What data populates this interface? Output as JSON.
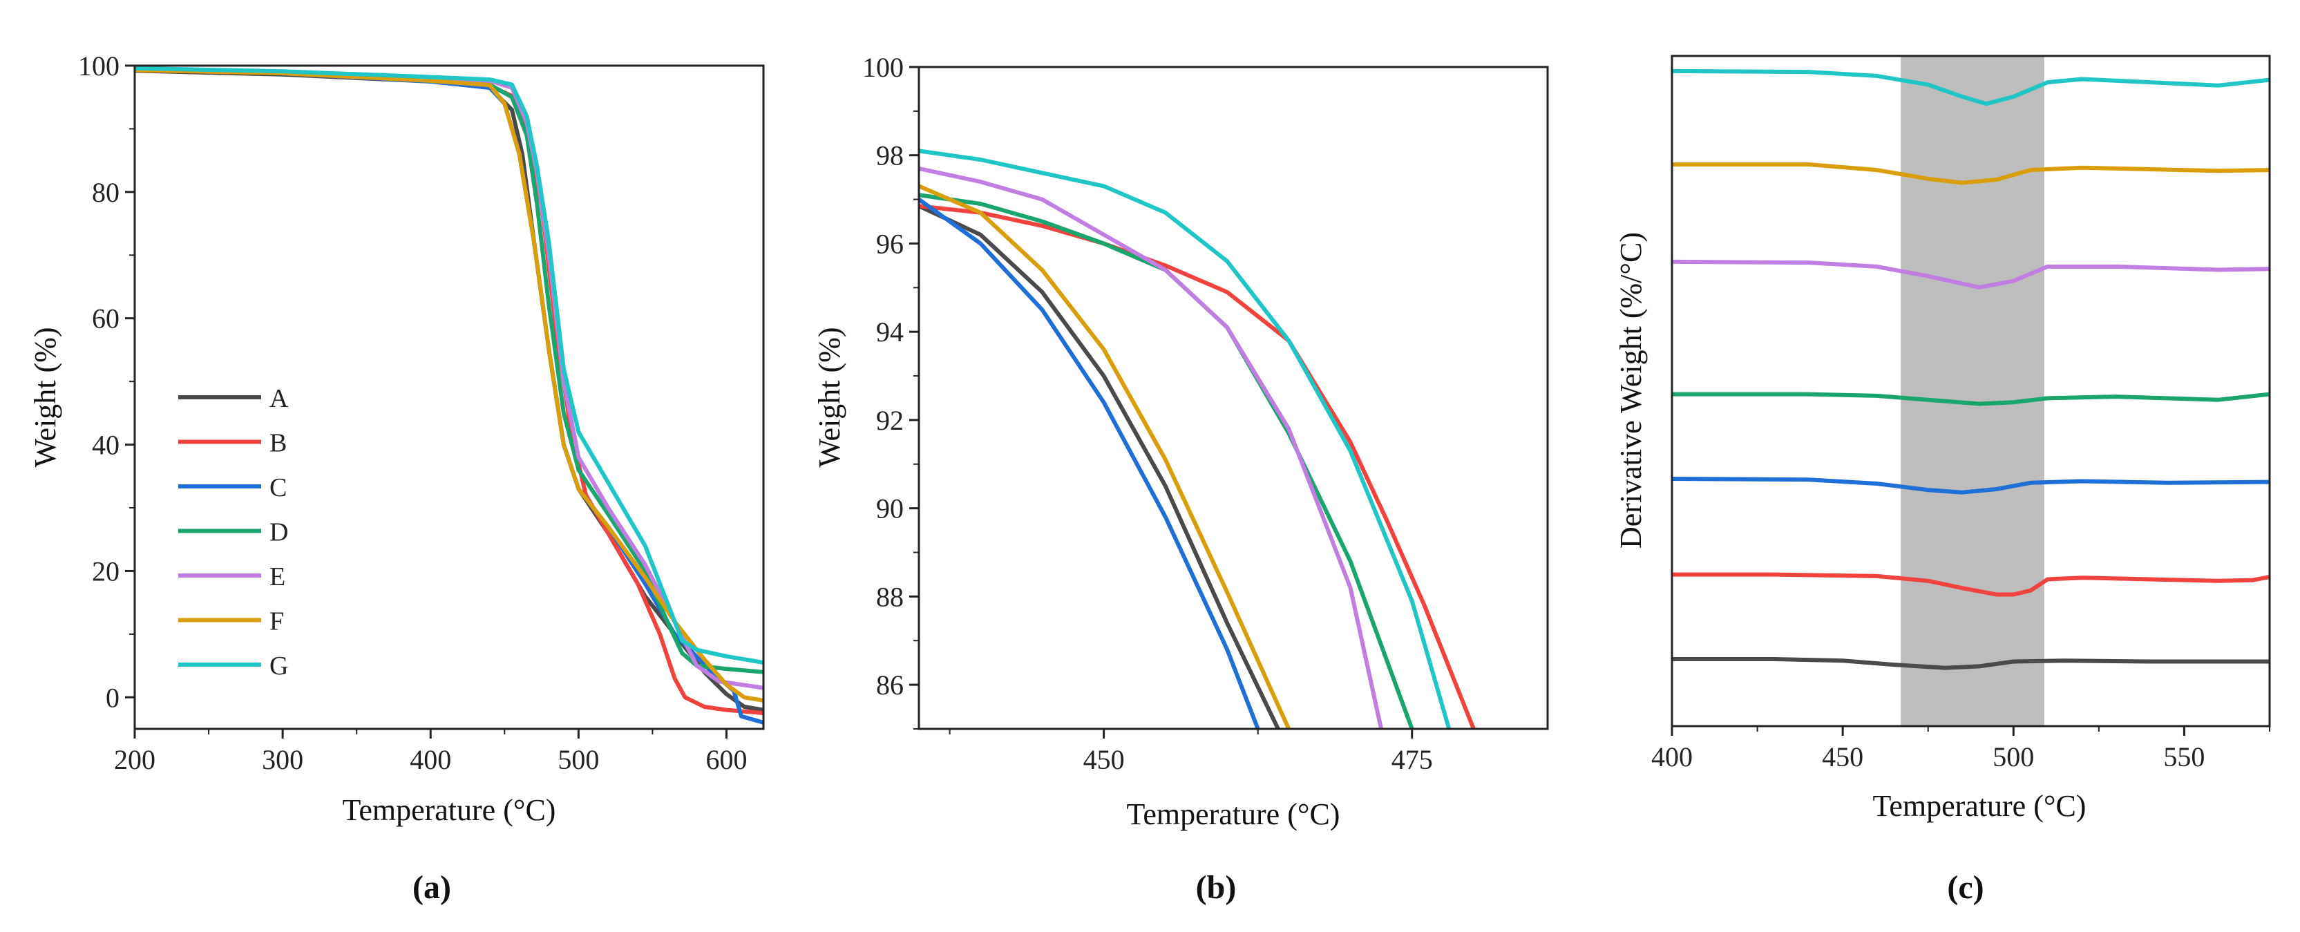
{
  "colors": {
    "A": "#4a4a4a",
    "B": "#f0423f",
    "C": "#1f6fd6",
    "D": "#1aa56e",
    "E": "#c07fe0",
    "F": "#d99e0b",
    "G": "#20c5c5",
    "band": "#bdbdbd"
  },
  "chart_data": [
    {
      "type": "line",
      "title": "",
      "panel_label": "(a)",
      "xlabel": "Temperature (°C)",
      "ylabel": "Weight (%)",
      "xlim": [
        200,
        625
      ],
      "ylim": [
        -5,
        100
      ],
      "xticks": [
        200,
        300,
        400,
        500,
        600
      ],
      "yticks": [
        0,
        20,
        40,
        60,
        80,
        100
      ],
      "legend": [
        "A",
        "B",
        "C",
        "D",
        "E",
        "F",
        "G"
      ],
      "legend_position": "center-left",
      "series": [
        {
          "name": "A",
          "x": [
            200,
            300,
            400,
            440,
            455,
            462,
            470,
            480,
            490,
            500,
            520,
            545,
            565,
            585,
            600,
            612,
            625
          ],
          "y": [
            99.2,
            98.6,
            97.5,
            96.5,
            93,
            86,
            72,
            55,
            40,
            33,
            26,
            16,
            10,
            4,
            0.5,
            -1.5,
            -2
          ]
        },
        {
          "name": "B",
          "x": [
            200,
            300,
            400,
            440,
            455,
            465,
            475,
            485,
            495,
            505,
            520,
            540,
            555,
            565,
            572,
            585,
            600,
            625
          ],
          "y": [
            99.3,
            98.8,
            97.6,
            96.8,
            95.2,
            90,
            78,
            58,
            42,
            32,
            26,
            18,
            10,
            3,
            0,
            -1.5,
            -2,
            -2.5
          ]
        },
        {
          "name": "C",
          "x": [
            200,
            300,
            400,
            440,
            450,
            460,
            470,
            480,
            490,
            500,
            520,
            545,
            565,
            590,
            605,
            610,
            625
          ],
          "y": [
            99.5,
            98.8,
            97.5,
            96.5,
            94,
            86,
            72,
            55,
            40,
            33,
            27,
            18,
            10,
            4,
            1,
            -3,
            -4
          ]
        },
        {
          "name": "D",
          "x": [
            200,
            300,
            400,
            440,
            455,
            465,
            472,
            480,
            490,
            500,
            520,
            545,
            560,
            570,
            580,
            600,
            625
          ],
          "y": [
            99.4,
            98.9,
            97.8,
            97,
            95,
            89,
            78,
            62,
            45,
            36,
            29,
            20,
            12,
            7,
            5,
            4.5,
            4
          ]
        },
        {
          "name": "E",
          "x": [
            200,
            300,
            400,
            440,
            455,
            465,
            472,
            480,
            490,
            500,
            520,
            545,
            565,
            580,
            595,
            610,
            625
          ],
          "y": [
            99.5,
            99,
            98,
            97.6,
            96.5,
            91,
            83,
            70,
            50,
            38,
            30,
            21,
            12,
            5,
            2.5,
            2,
            1.5
          ]
        },
        {
          "name": "F",
          "x": [
            200,
            300,
            400,
            440,
            450,
            460,
            470,
            480,
            490,
            500,
            520,
            545,
            565,
            585,
            600,
            612,
            625
          ],
          "y": [
            99.3,
            98.8,
            97.6,
            96.9,
            94,
            86,
            72,
            55,
            40,
            33,
            27,
            19,
            12,
            6,
            2,
            0,
            -0.5
          ]
        },
        {
          "name": "G",
          "x": [
            200,
            300,
            400,
            440,
            455,
            465,
            472,
            480,
            490,
            500,
            520,
            545,
            560,
            570,
            580,
            600,
            625
          ],
          "y": [
            99.6,
            99.1,
            98.2,
            97.8,
            97,
            92,
            84,
            72,
            52,
            42,
            34,
            24,
            15,
            9,
            7.5,
            6.5,
            5.5
          ]
        }
      ]
    },
    {
      "type": "line",
      "title": "",
      "panel_label": "(b)",
      "xlabel": "Temperature (°C)",
      "ylabel": "Weight (%)",
      "xlim": [
        435,
        486
      ],
      "ylim": [
        85,
        100
      ],
      "xticks": [
        450,
        475
      ],
      "yticks": [
        86,
        88,
        90,
        92,
        94,
        96,
        98,
        100
      ],
      "series": [
        {
          "name": "A",
          "x": [
            435,
            440,
            445,
            450,
            455,
            460,
            465
          ],
          "y": [
            96.85,
            96.2,
            94.9,
            93.0,
            90.5,
            87.4,
            84.5
          ]
        },
        {
          "name": "B",
          "x": [
            435,
            440,
            445,
            450,
            455,
            460,
            465,
            470,
            473,
            476,
            480
          ],
          "y": [
            96.85,
            96.7,
            96.4,
            96.0,
            95.5,
            94.9,
            93.8,
            91.5,
            89.7,
            87.8,
            85
          ]
        },
        {
          "name": "C",
          "x": [
            435,
            440,
            445,
            450,
            455,
            460,
            462.5
          ],
          "y": [
            97.0,
            96.0,
            94.5,
            92.4,
            89.8,
            86.8,
            85
          ]
        },
        {
          "name": "D",
          "x": [
            435,
            440,
            445,
            450,
            455,
            460,
            465,
            470,
            475
          ],
          "y": [
            97.1,
            96.9,
            96.5,
            96.0,
            95.4,
            94.1,
            91.7,
            88.8,
            85
          ]
        },
        {
          "name": "E",
          "x": [
            435,
            440,
            445,
            450,
            455,
            460,
            465,
            470,
            472.5
          ],
          "y": [
            97.7,
            97.4,
            97.0,
            96.2,
            95.4,
            94.1,
            91.8,
            88.2,
            85
          ]
        },
        {
          "name": "F",
          "x": [
            435,
            440,
            445,
            450,
            455,
            460,
            465
          ],
          "y": [
            97.3,
            96.7,
            95.4,
            93.6,
            91.1,
            88.1,
            85
          ]
        },
        {
          "name": "G",
          "x": [
            435,
            440,
            445,
            450,
            455,
            460,
            465,
            470,
            475,
            478
          ],
          "y": [
            98.1,
            97.9,
            97.6,
            97.3,
            96.7,
            95.6,
            93.8,
            91.3,
            87.9,
            85
          ]
        }
      ]
    },
    {
      "type": "line",
      "title": "",
      "panel_label": "(c)",
      "xlabel": "Temperature (°C)",
      "ylabel": "Derivative Weight (%/°C)",
      "xlim": [
        400,
        575
      ],
      "xticks": [
        400,
        450,
        500,
        550
      ],
      "yticks": [],
      "highlight_band": [
        467,
        509
      ],
      "series": [
        {
          "name": "A",
          "x": [
            400,
            430,
            450,
            465,
            480,
            490,
            500,
            515,
            540,
            560,
            575
          ],
          "y": [
            8.4,
            8.4,
            8.2,
            7.7,
            7.3,
            7.5,
            8.1,
            8.2,
            8.1,
            8.1,
            8.1
          ]
        },
        {
          "name": "B",
          "x": [
            400,
            430,
            460,
            475,
            485,
            495,
            500,
            505,
            510,
            520,
            560,
            570,
            575
          ],
          "y": [
            19.0,
            19.0,
            18.8,
            18.2,
            17.3,
            16.5,
            16.5,
            17.0,
            18.4,
            18.6,
            18.2,
            18.3,
            18.7
          ]
        },
        {
          "name": "C",
          "x": [
            400,
            440,
            460,
            475,
            485,
            495,
            505,
            520,
            545,
            575
          ],
          "y": [
            31.0,
            30.9,
            30.4,
            29.6,
            29.3,
            29.7,
            30.5,
            30.7,
            30.5,
            30.6
          ]
        },
        {
          "name": "D",
          "x": [
            400,
            440,
            460,
            475,
            490,
            500,
            510,
            530,
            560,
            575
          ],
          "y": [
            41.6,
            41.6,
            41.4,
            40.9,
            40.4,
            40.6,
            41.1,
            41.3,
            40.9,
            41.6
          ]
        },
        {
          "name": "E",
          "x": [
            400,
            440,
            460,
            475,
            490,
            500,
            510,
            530,
            560,
            575
          ],
          "y": [
            58.2,
            58.1,
            57.6,
            56.4,
            55.0,
            55.8,
            57.6,
            57.6,
            57.2,
            57.3
          ]
        },
        {
          "name": "F",
          "x": [
            400,
            440,
            460,
            475,
            485,
            495,
            505,
            520,
            560,
            575
          ],
          "y": [
            70.4,
            70.4,
            69.7,
            68.6,
            68.1,
            68.5,
            69.7,
            70.0,
            69.6,
            69.7
          ]
        },
        {
          "name": "G",
          "x": [
            400,
            440,
            460,
            475,
            485,
            492,
            500,
            510,
            520,
            560,
            575
          ],
          "y": [
            82.1,
            82.0,
            81.5,
            80.4,
            78.9,
            78.0,
            78.9,
            80.7,
            81.1,
            80.3,
            81.0
          ]
        }
      ],
      "ylim": [
        0,
        84
      ]
    }
  ]
}
